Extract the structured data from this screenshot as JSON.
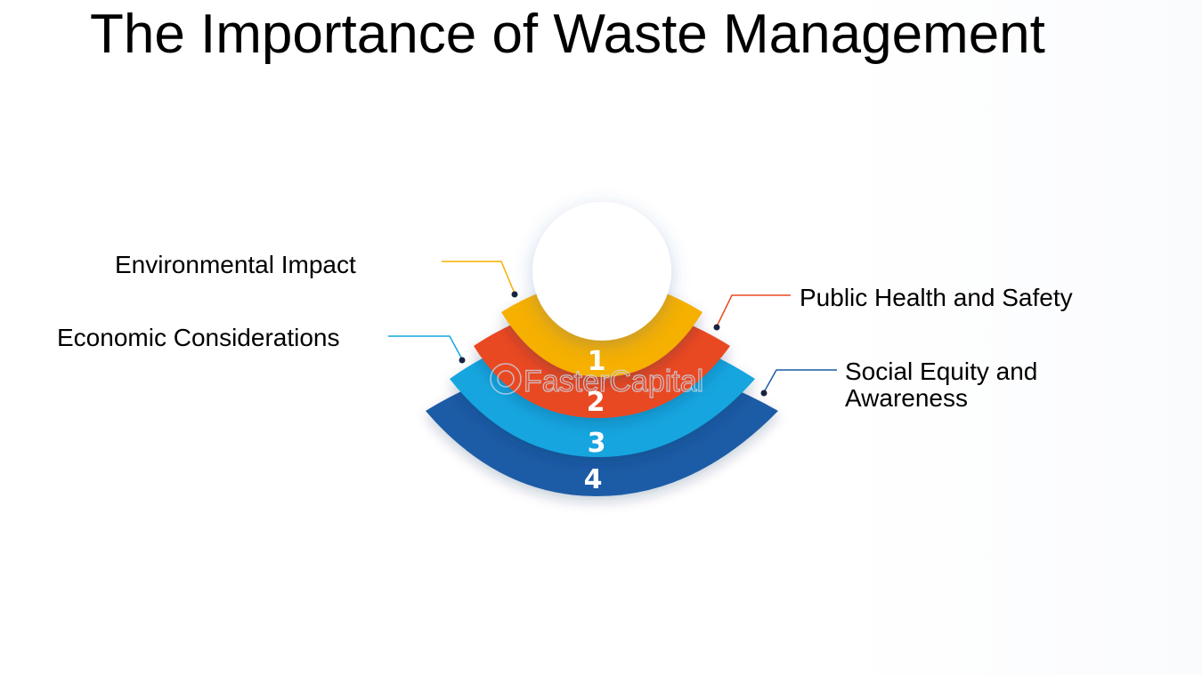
{
  "title": "The Importance of Waste Management",
  "items": [
    {
      "number": "1",
      "label": "Environmental Impact",
      "color": "#f6b000"
    },
    {
      "number": "2",
      "label": "Public Health and Safety",
      "color": "#e94a23"
    },
    {
      "number": "3",
      "label": "Economic Considerations",
      "color": "#12a5de"
    },
    {
      "number": "4",
      "label": "Social Equity and Awareness",
      "color": "#1c5ca6"
    }
  ],
  "watermark": "FasterCapital"
}
